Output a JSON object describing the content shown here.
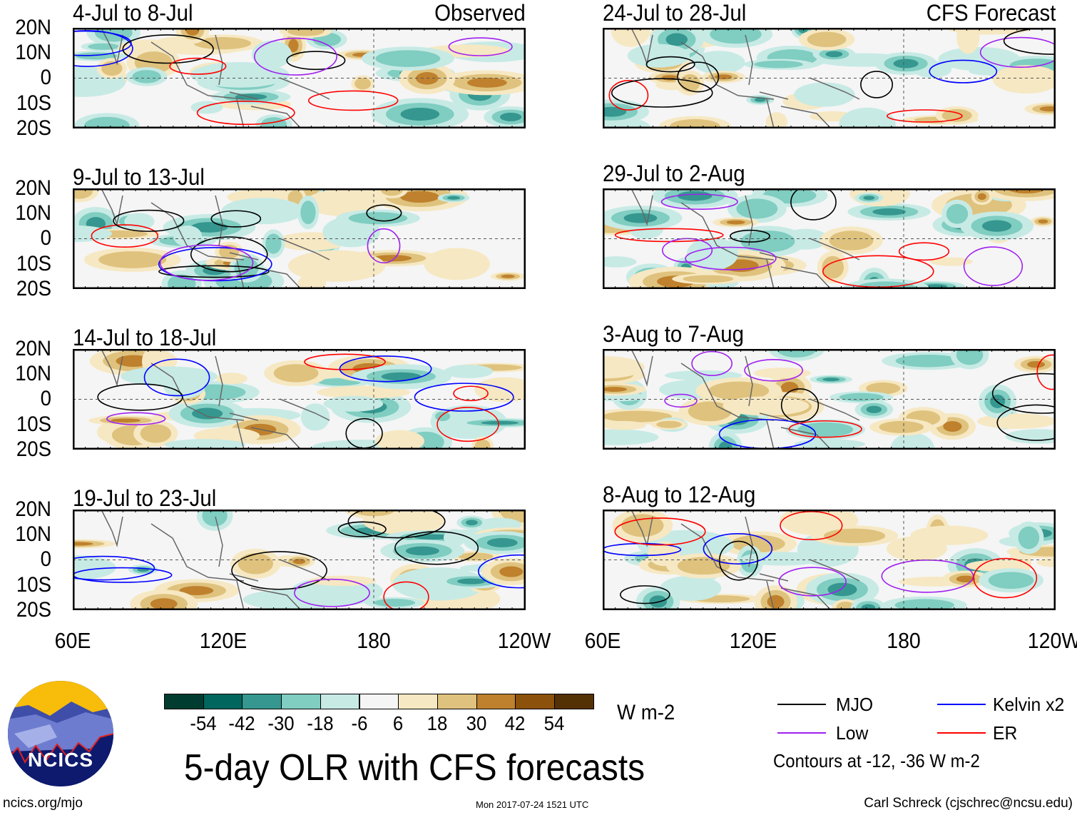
{
  "panels": [
    {
      "title": "4-Jul to 8-Jul",
      "tag": "Observed"
    },
    {
      "title": "9-Jul to 13-Jul",
      "tag": ""
    },
    {
      "title": "14-Jul to 18-Jul",
      "tag": ""
    },
    {
      "title": "19-Jul to 23-Jul",
      "tag": ""
    },
    {
      "title": "24-Jul to 28-Jul",
      "tag": "CFS Forecast"
    },
    {
      "title": "29-Jul to 2-Aug",
      "tag": ""
    },
    {
      "title": "3-Aug to 7-Aug",
      "tag": ""
    },
    {
      "title": "8-Aug to 12-Aug",
      "tag": ""
    }
  ],
  "lat_labels": [
    "20N",
    "10N",
    "0",
    "10S",
    "20S"
  ],
  "lon_labels": [
    "60E",
    "120E",
    "180",
    "120W"
  ],
  "colorbar": {
    "colors": [
      "#003c30",
      "#01665e",
      "#35978f",
      "#80cdc1",
      "#c7eae5",
      "#f5f5f5",
      "#f6e8c3",
      "#dfc27d",
      "#bf812d",
      "#8c510a",
      "#543005"
    ],
    "labels": [
      "-54",
      "-42",
      "-30",
      "-18",
      "-6",
      "6",
      "18",
      "30",
      "42",
      "54"
    ],
    "units": "W m-2"
  },
  "legend": {
    "items": [
      {
        "label": "MJO",
        "color": "#000000"
      },
      {
        "label": "Kelvin x2",
        "color": "#0000ff"
      },
      {
        "label": "Low",
        "color": "#a020f0"
      },
      {
        "label": "ER",
        "color": "#ff0000"
      }
    ],
    "note": "Contours at -12, -36 W m-2"
  },
  "title": "5-day OLR with CFS forecasts",
  "logo_text": "NCICS",
  "footer": {
    "url": "ncics.org/mjo",
    "timestamp": "Mon 2017-07-24 1521 UTC",
    "credit": "Carl Schreck (cjschrec@ncsu.edu)"
  }
}
